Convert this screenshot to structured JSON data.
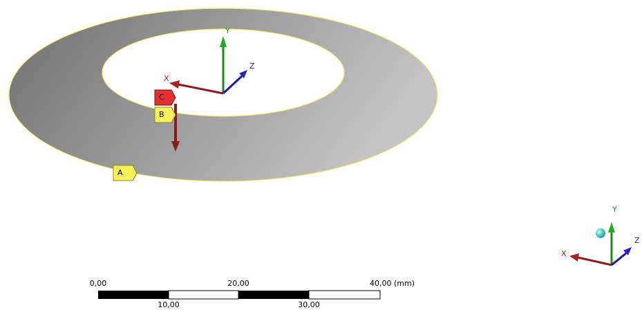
{
  "viewport": {
    "triad": {
      "x": "X",
      "y": "Y",
      "z": "Z"
    },
    "mini_triad": {
      "x": "X",
      "y": "Y",
      "z": "Z"
    },
    "markers": {
      "a": "A",
      "b": "B",
      "c": "C"
    },
    "scale_bar": {
      "top_labels": [
        "0,00",
        "20,00",
        "40,00 (mm)"
      ],
      "bottom_labels": [
        "10,00",
        "30,00"
      ]
    }
  }
}
